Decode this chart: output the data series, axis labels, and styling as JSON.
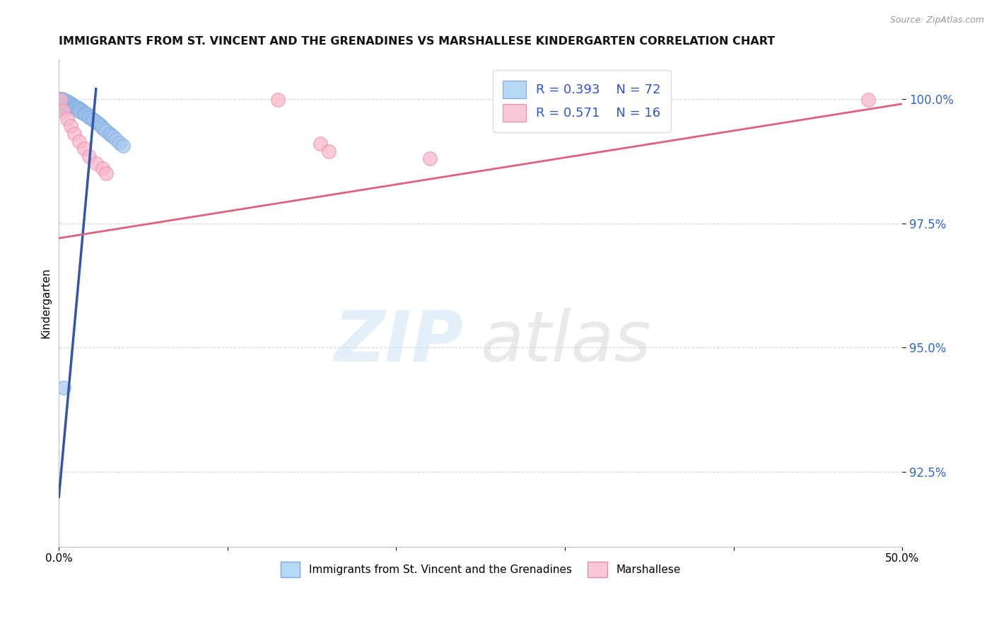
{
  "title": "IMMIGRANTS FROM ST. VINCENT AND THE GRENADINES VS MARSHALLESE KINDERGARTEN CORRELATION CHART",
  "source": "Source: ZipAtlas.com",
  "ylabel": "Kindergarten",
  "xlim": [
    0.0,
    0.5
  ],
  "ylim": [
    0.91,
    1.008
  ],
  "xticks": [
    0.0,
    0.1,
    0.2,
    0.3,
    0.4,
    0.5
  ],
  "xtick_labels": [
    "0.0%",
    "",
    "",
    "",
    "",
    "50.0%"
  ],
  "yticks": [
    0.925,
    0.95,
    0.975,
    1.0
  ],
  "ytick_labels": [
    "92.5%",
    "95.0%",
    "97.5%",
    "100.0%"
  ],
  "blue_R": 0.393,
  "blue_N": 72,
  "pink_R": 0.571,
  "pink_N": 16,
  "blue_color": "#a8c8f0",
  "blue_edge": "#7aabdd",
  "pink_color": "#f8b8c8",
  "pink_edge": "#e88aaa",
  "blue_line_color": "#3355aa",
  "pink_line_color": "#e06080",
  "legend_blue_color": "#b8d8f8",
  "legend_pink_color": "#f8c8d8",
  "legend_text_color": "#3355cc",
  "blue_dots_x": [
    0.001,
    0.001,
    0.001,
    0.001,
    0.001,
    0.002,
    0.002,
    0.002,
    0.002,
    0.002,
    0.002,
    0.002,
    0.003,
    0.003,
    0.003,
    0.003,
    0.003,
    0.003,
    0.004,
    0.004,
    0.004,
    0.004,
    0.004,
    0.005,
    0.005,
    0.005,
    0.005,
    0.006,
    0.006,
    0.006,
    0.006,
    0.007,
    0.007,
    0.007,
    0.008,
    0.008,
    0.008,
    0.009,
    0.009,
    0.01,
    0.01,
    0.011,
    0.011,
    0.012,
    0.012,
    0.013,
    0.013,
    0.014,
    0.015,
    0.015,
    0.016,
    0.016,
    0.017,
    0.018,
    0.018,
    0.019,
    0.02,
    0.021,
    0.022,
    0.023,
    0.024,
    0.025,
    0.026,
    0.027,
    0.028,
    0.03,
    0.031,
    0.032,
    0.034,
    0.036,
    0.038,
    0.003
  ],
  "blue_dots_y": [
    1.0,
    0.9998,
    0.9996,
    0.9993,
    0.999,
    1.0,
    0.9998,
    0.9995,
    0.9992,
    0.9989,
    0.9986,
    0.9983,
    0.9998,
    0.9995,
    0.9992,
    0.9988,
    0.9985,
    0.9982,
    0.9996,
    0.9993,
    0.999,
    0.9987,
    0.9984,
    0.9995,
    0.9991,
    0.9988,
    0.9984,
    0.9993,
    0.9989,
    0.9986,
    0.9982,
    0.9991,
    0.9988,
    0.9984,
    0.9989,
    0.9985,
    0.9982,
    0.9986,
    0.9983,
    0.9984,
    0.9981,
    0.9982,
    0.9979,
    0.998,
    0.9976,
    0.9978,
    0.9974,
    0.9975,
    0.9973,
    0.997,
    0.9971,
    0.9968,
    0.9969,
    0.9966,
    0.9963,
    0.9962,
    0.9959,
    0.9957,
    0.9954,
    0.9951,
    0.9948,
    0.9945,
    0.9942,
    0.9939,
    0.9936,
    0.993,
    0.9927,
    0.9924,
    0.9918,
    0.9912,
    0.9906,
    0.942
  ],
  "pink_dots_x": [
    0.001,
    0.003,
    0.005,
    0.007,
    0.009,
    0.012,
    0.015,
    0.018,
    0.022,
    0.026,
    0.028,
    0.13,
    0.155,
    0.16,
    0.22,
    0.48
  ],
  "pink_dots_y": [
    0.9998,
    0.9975,
    0.996,
    0.9945,
    0.993,
    0.9915,
    0.99,
    0.9885,
    0.987,
    0.986,
    0.985,
    0.9998,
    0.991,
    0.9895,
    0.988,
    0.9998
  ],
  "blue_trend_x": [
    0.0,
    0.022
  ],
  "blue_trend_y": [
    0.92,
    1.002
  ],
  "pink_trend_x": [
    0.0,
    0.5
  ],
  "pink_trend_y": [
    0.972,
    0.999
  ]
}
